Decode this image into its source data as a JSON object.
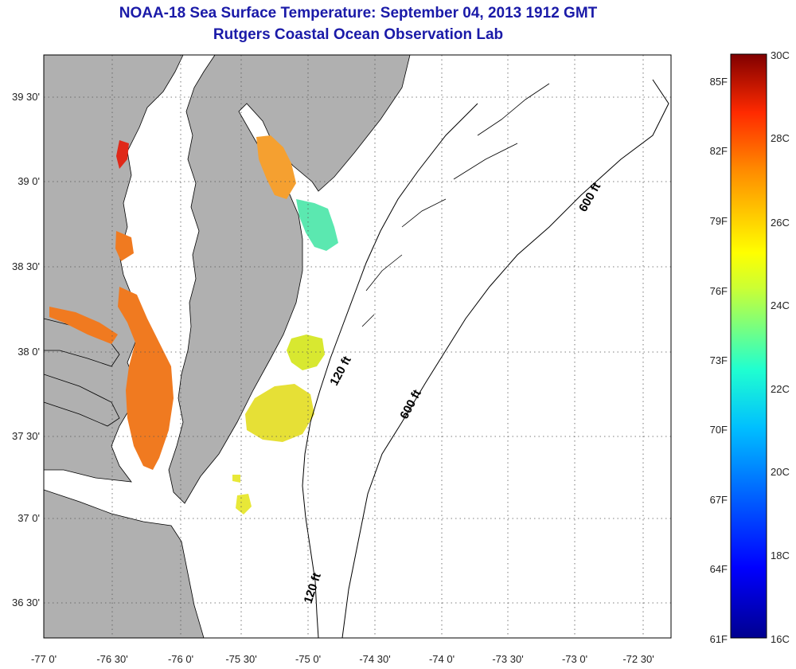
{
  "header": {
    "title": "NOAA-18 Sea Surface Temperature:  September 04, 2013 1912 GMT",
    "subtitle": "Rutgers Coastal Ocean Observation Lab"
  },
  "map": {
    "lat_labels": [
      "39 30'",
      "39 0'",
      "38 30'",
      "38 0'",
      "37 30'",
      "37 0'",
      "36 30'"
    ],
    "lon_labels": [
      "-77 0'",
      "-76 30'",
      "-76 0'",
      "-75 30'",
      "-75 0'",
      "-74 30'",
      "-74 0'",
      "-73 30'",
      "-73 0'",
      "-72 30'"
    ],
    "contours": [
      "600 ft",
      "120 ft",
      "600 ft",
      "120 ft"
    ],
    "colors": {
      "land": "#b0b0b0",
      "water": "#ffffff",
      "contour": "#000000",
      "grid": "#555555"
    }
  },
  "colorbar": {
    "f_labels": [
      "85F",
      "82F",
      "79F",
      "76F",
      "73F",
      "70F",
      "67F",
      "64F",
      "61F"
    ],
    "c_labels": [
      "30C",
      "28C",
      "26C",
      "24C",
      "22C",
      "20C",
      "18C",
      "16C"
    ],
    "range_c": [
      16,
      30
    ]
  }
}
